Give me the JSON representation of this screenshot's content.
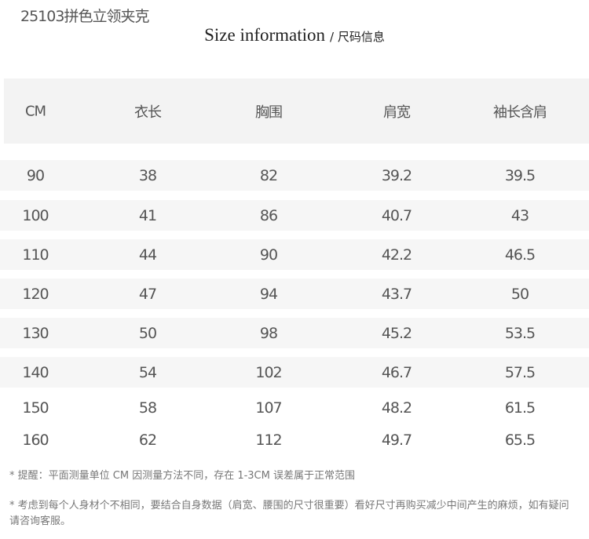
{
  "product_title": "25103拼色立领夹克",
  "heading": {
    "en": "Size information",
    "zh": "/ 尺码信息"
  },
  "table": {
    "headers": [
      "CM",
      "衣长",
      "胸围",
      "肩宽",
      "袖长含肩"
    ],
    "rows": [
      [
        "90",
        "38",
        "82",
        "39.2",
        "39.5"
      ],
      [
        "100",
        "41",
        "86",
        "40.7",
        "43"
      ],
      [
        "110",
        "44",
        "90",
        "42.2",
        "46.5"
      ],
      [
        "120",
        "47",
        "94",
        "43.7",
        "50"
      ],
      [
        "130",
        "50",
        "98",
        "45.2",
        "53.5"
      ],
      [
        "140",
        "54",
        "102",
        "46.7",
        "57.5"
      ],
      [
        "150",
        "58",
        "107",
        "48.2",
        "61.5"
      ],
      [
        "160",
        "62",
        "112",
        "49.7",
        "65.5"
      ]
    ]
  },
  "notes": [
    "* 提醒：平面测量单位 CM 因测量方法不同，存在 1-3CM 误差属于正常范围",
    "* 考虑到每个人身材个不相同，要结合自身数据（肩宽、腰围的尺寸很重要）看好尺寸再购买减少中间产生的麻烦，如有疑问请咨询客服。"
  ]
}
